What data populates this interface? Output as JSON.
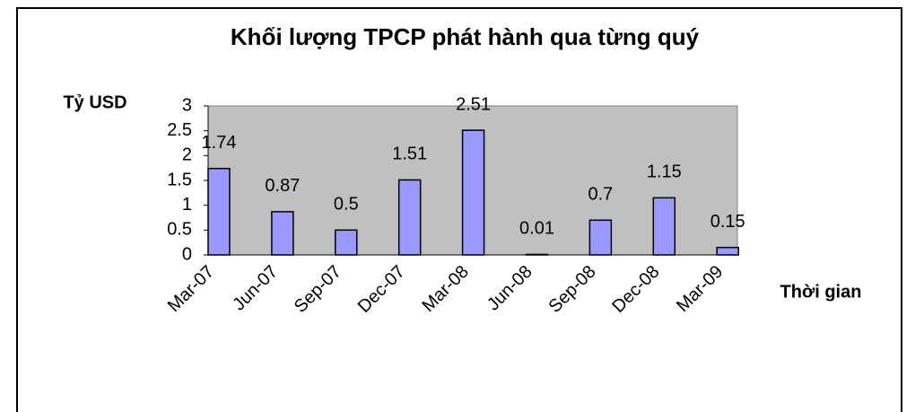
{
  "chart_data": {
    "type": "bar",
    "title": "Khối lượng TPCP phát hành qua từng quý",
    "y_label": "Tỷ USD",
    "x_label": "Thời gian",
    "categories": [
      "Mar-07",
      "Jun-07",
      "Sep-07",
      "Dec-07",
      "Mar-08",
      "Jun-08",
      "Sep-08",
      "Dec-08",
      "Mar-09"
    ],
    "values": [
      1.74,
      0.87,
      0.5,
      1.51,
      2.51,
      0.01,
      0.7,
      1.15,
      0.15
    ],
    "color": "#9999ff",
    "ylim": [
      0,
      3
    ],
    "yticks": [
      0,
      0.5,
      1,
      1.5,
      2,
      2.5,
      3
    ]
  }
}
